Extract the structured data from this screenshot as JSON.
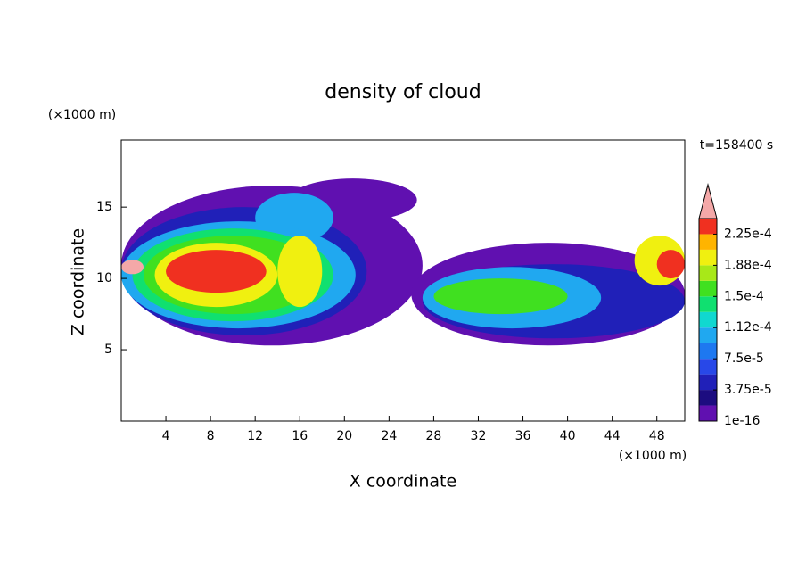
{
  "chart_data": {
    "type": "contour",
    "title": "density of cloud",
    "x_label": "X coordinate",
    "y_label": "Z coordinate",
    "x_unit": "(×1000 m)",
    "y_unit": "(×1000 m)",
    "time_label": "t=158400 s",
    "xlim": [
      0,
      50.5
    ],
    "ylim": [
      0,
      19.7
    ],
    "xticks": [
      4,
      8,
      12,
      16,
      20,
      24,
      28,
      32,
      36,
      40,
      44,
      48
    ],
    "yticks": [
      5,
      10,
      15
    ],
    "clim": [
      1e-16,
      0.00024375
    ],
    "colors": [
      "#6010b0",
      "#1c0c80",
      "#2020b8",
      "#2848e8",
      "#1e78f0",
      "#20a8f0",
      "#10d8d0",
      "#10e070",
      "#40e020",
      "#a8e818",
      "#f0f010",
      "#ffb400",
      "#f03020"
    ],
    "overflow_color": "#f4a8a8",
    "cticks": [
      {
        "value": 1e-16,
        "label": "1e-16"
      },
      {
        "value": 3.75e-05,
        "label": "3.75e-5"
      },
      {
        "value": 7.5e-05,
        "label": "7.5e-5"
      },
      {
        "value": 0.0001125,
        "label": "1.12e-4"
      },
      {
        "value": 0.00015,
        "label": "1.5e-4"
      },
      {
        "value": 0.0001875,
        "label": "1.88e-4"
      },
      {
        "value": 0.000225,
        "label": "2.25e-4"
      }
    ],
    "cloud_regions": [
      {
        "x": [
          0,
          27
        ],
        "z": [
          5.3,
          16.5
        ],
        "value": 5e-06
      },
      {
        "x": [
          26,
          50.5
        ],
        "z": [
          5.3,
          12.5
        ],
        "value": 5e-06
      },
      {
        "x": [
          15,
          26.5
        ],
        "z": [
          14,
          17
        ],
        "value": 5e-06
      },
      {
        "x": [
          0,
          22
        ],
        "z": [
          6,
          15
        ],
        "value": 4e-05
      },
      {
        "x": [
          27,
          50.5
        ],
        "z": [
          5.8,
          11
        ],
        "value": 4e-05
      },
      {
        "x": [
          12,
          19
        ],
        "z": [
          12.5,
          16
        ],
        "value": 0.0001
      },
      {
        "x": [
          0,
          21
        ],
        "z": [
          6.5,
          14
        ],
        "value": 0.0001
      },
      {
        "x": [
          27,
          43
        ],
        "z": [
          6.5,
          10.8
        ],
        "value": 0.0001
      },
      {
        "x": [
          1,
          19
        ],
        "z": [
          7,
          13.5
        ],
        "value": 0.00014
      },
      {
        "x": [
          28,
          40
        ],
        "z": [
          7.5,
          10
        ],
        "value": 0.000155
      },
      {
        "x": [
          2,
          18
        ],
        "z": [
          7.5,
          13
        ],
        "value": 0.00016
      },
      {
        "x": [
          3,
          14
        ],
        "z": [
          8,
          12.5
        ],
        "value": 0.00019
      },
      {
        "x": [
          14,
          18
        ],
        "z": [
          8,
          13
        ],
        "value": 0.000195
      },
      {
        "x": [
          46,
          50.5
        ],
        "z": [
          9.5,
          13
        ],
        "value": 0.0002
      },
      {
        "x": [
          4,
          13
        ],
        "z": [
          9,
          12
        ],
        "value": 0.00023
      },
      {
        "x": [
          48,
          50.5
        ],
        "z": [
          10,
          12
        ],
        "value": 0.00023
      },
      {
        "x": [
          0,
          2
        ],
        "z": [
          10.3,
          11.3
        ],
        "value": 0.00025
      }
    ]
  }
}
